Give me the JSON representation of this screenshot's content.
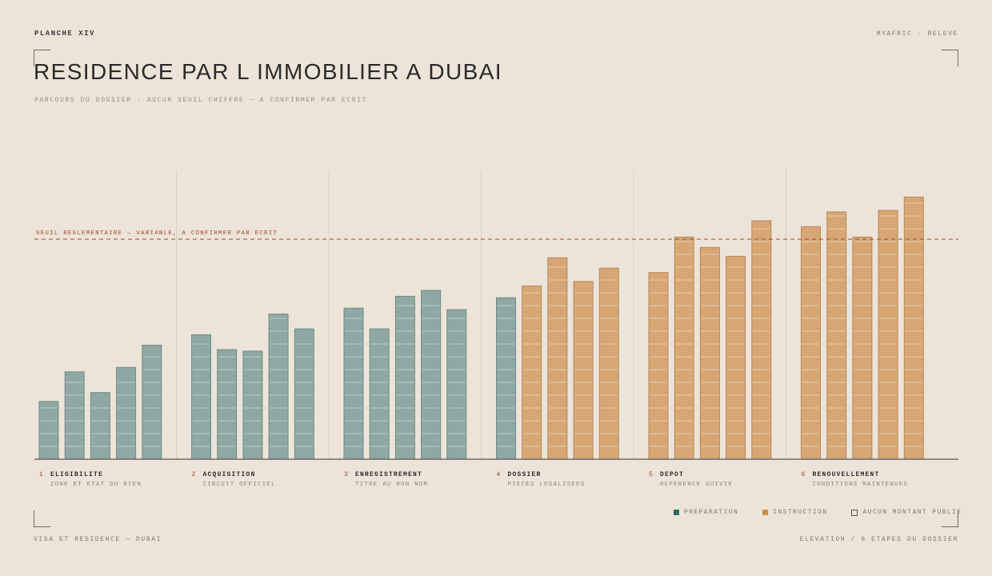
{
  "header": {
    "plate": "PLANCHE XIV",
    "source": "MYAFRIC · RELEVE",
    "title": "RESIDENCE PAR L IMMOBILIER A DUBAI",
    "subtitle": "PARCOURS DU DOSSIER · AUCUN SEUIL CHIFFRE — A CONFIRMER PAR ECRIT"
  },
  "footer": {
    "left": "VISA ET RESIDENCE — DUBAI",
    "right": "ELEVATION / 6 ETAPES DU DOSSIER"
  },
  "legend": {
    "preparation": "PREPARATION",
    "instruction": "INSTRUCTION",
    "none": "AUCUN MONTANT PUBLIE"
  },
  "colors": {
    "preparation": "#8fa8a3",
    "instruction": "#d6a775",
    "threshold": "#a0452c",
    "background": "#ede4d9"
  },
  "chart_data": {
    "type": "bar",
    "threshold": {
      "label": "SEUIL REGLEMENTAIRE — VARIABLE, A CONFIRMER PAR ECRIT",
      "value": 77
    },
    "ylim": [
      0,
      100
    ],
    "groups": [
      {
        "num": "1",
        "name": "ELIGIBILITE",
        "desc": "ZONE ET ETAT DU BIEN",
        "phase": "preparation",
        "values": [
          19.5,
          29.5,
          22.5,
          31,
          38.5
        ]
      },
      {
        "num": "2",
        "name": "ACQUISITION",
        "desc": "CIRCUIT OFFICIEL",
        "phase": "preparation",
        "values": [
          42,
          37,
          36.5,
          49,
          44
        ]
      },
      {
        "num": "3",
        "name": "ENREGISTREMENT",
        "desc": "TITRE AU BON NOM",
        "phase": "preparation",
        "values": [
          51,
          44,
          55,
          57,
          50.5
        ]
      },
      {
        "num": "4",
        "name": "DOSSIER",
        "desc": "PIECES LEGALISEES",
        "phase": "mixed",
        "phases": [
          "preparation",
          "instruction",
          "instruction",
          "instruction",
          "instruction"
        ],
        "values": [
          54.5,
          58.5,
          68,
          60,
          64.5
        ]
      },
      {
        "num": "5",
        "name": "DEPOT",
        "desc": "REFERENCE SUIVIE",
        "phase": "instruction",
        "values": [
          63,
          75,
          71.5,
          68.5,
          80.5
        ]
      },
      {
        "num": "6",
        "name": "RENOUVELLEMENT",
        "desc": "CONDITIONS MAINTENUES",
        "phase": "instruction",
        "values": [
          78.5,
          83.5,
          75,
          84,
          88.5
        ]
      }
    ]
  }
}
